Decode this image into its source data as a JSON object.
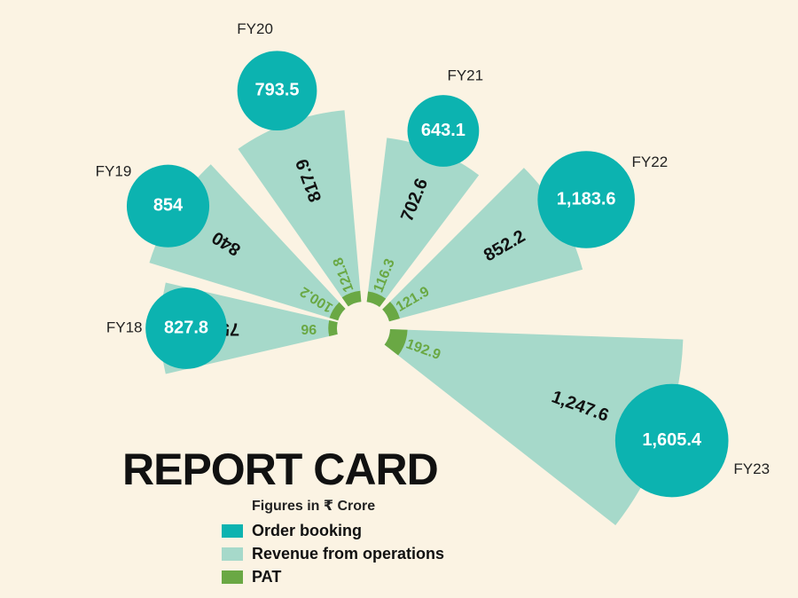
{
  "colors": {
    "background": "#fbf3e3",
    "order_booking": "#0cb3b0",
    "revenue": "#a6d9ca",
    "pat": "#6aa844"
  },
  "chart_data": {
    "type": "radial-bar",
    "title": "REPORT CARD",
    "subtitle": "Figures in ₹ Crore",
    "categories": [
      "FY18",
      "FY19",
      "FY20",
      "FY21",
      "FY22",
      "FY23"
    ],
    "series": [
      {
        "name": "Order booking",
        "labels": [
          "827.8",
          "854",
          "793.5",
          "643.1",
          "1,183.6",
          "1,605.4"
        ],
        "values": [
          827.8,
          854,
          793.5,
          643.1,
          1183.6,
          1605.4
        ]
      },
      {
        "name": "Revenue from operations",
        "labels": [
          "751.1",
          "840",
          "817.9",
          "702.6",
          "852.2",
          "1,247.6"
        ],
        "values": [
          751.1,
          840,
          817.9,
          702.6,
          852.2,
          1247.6
        ]
      },
      {
        "name": "PAT",
        "labels": [
          "96",
          "100.2",
          "121.8",
          "116.3",
          "121.9",
          "192.9"
        ],
        "values": [
          96,
          100.2,
          121.8,
          116.3,
          121.9,
          192.9
        ]
      }
    ],
    "legend": [
      "Order booking",
      "Revenue from operations",
      "PAT"
    ],
    "legend_position": "bottom-left"
  }
}
